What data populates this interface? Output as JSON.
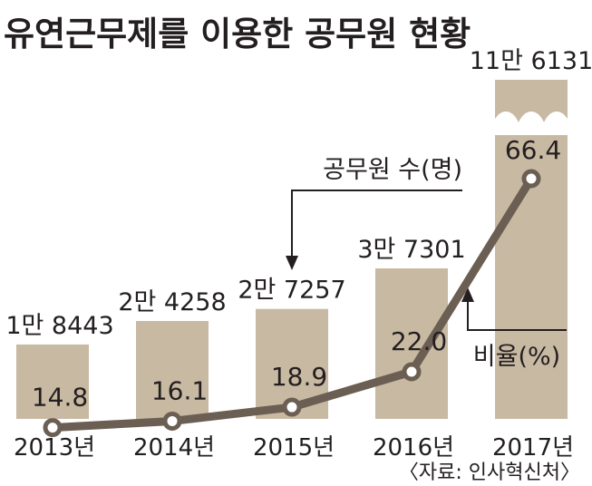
{
  "title": "유연근무제를 이용한 공무원 현황",
  "source": "〈자료: 인사혁신처〉",
  "chart_data": {
    "type": "bar",
    "categories": [
      "2013년",
      "2014년",
      "2015년",
      "2016년",
      "2017년"
    ],
    "series": [
      {
        "name": "공무원 수(명)",
        "values": [
          18443,
          24258,
          27257,
          37301,
          116131
        ],
        "labels": [
          "1만 8443",
          "2만 4258",
          "2만 7257",
          "3만 7301",
          "11만 6131"
        ]
      },
      {
        "name": "비율(%)",
        "type": "line",
        "values": [
          14.8,
          16.1,
          18.9,
          22.0,
          66.4
        ],
        "labels": [
          "14.8",
          "16.1",
          "18.9",
          "22.0",
          "66.4"
        ]
      }
    ],
    "axis_break": true,
    "colors": {
      "bar": "#c8b9a2",
      "line": "#6b5e53",
      "text": "#231f20"
    }
  }
}
